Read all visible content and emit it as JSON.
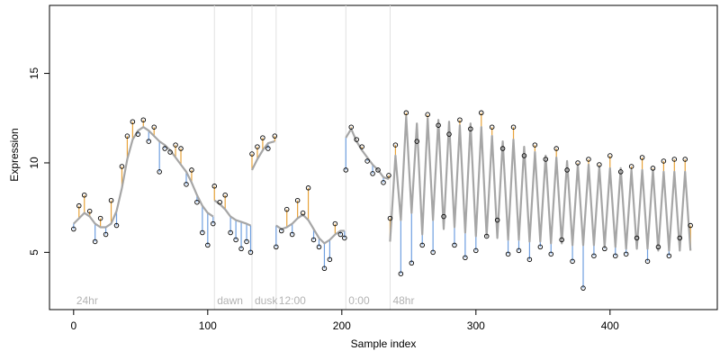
{
  "chart_data": {
    "type": "line",
    "xlabel": "Sample index",
    "ylabel": "Expression",
    "xlim": [
      -18,
      480
    ],
    "ylim": [
      1.8,
      18.8
    ],
    "x_ticks": [
      0,
      100,
      200,
      300,
      400
    ],
    "y_ticks": [
      5,
      10,
      15
    ],
    "grid": false,
    "colors": {
      "fit": "#a6a6a6",
      "residual_above": "#e8a33a",
      "residual_below": "#6f9fe0",
      "period_line": "#e0e0e0",
      "point_stroke": "#000000"
    },
    "periods": [
      {
        "label": "24hr",
        "x": 0
      },
      {
        "label": "dawn",
        "x": 105
      },
      {
        "label": "dusk",
        "x": 133
      },
      {
        "label": "12:00",
        "x": 151
      },
      {
        "label": "0:00",
        "x": 203
      },
      {
        "label": "48hr",
        "x": 236
      }
    ],
    "segments": [
      {
        "x": [
          0,
          4,
          8,
          12,
          16,
          20,
          24,
          28,
          32,
          36,
          40,
          44,
          48,
          52,
          56,
          60,
          64,
          68,
          72,
          76,
          80,
          84,
          88,
          92,
          96,
          100,
          104
        ],
        "fit": [
          6.6,
          6.9,
          7.2,
          7.0,
          6.6,
          6.4,
          6.4,
          6.6,
          7.3,
          8.6,
          10.2,
          11.3,
          11.8,
          12.0,
          11.8,
          11.5,
          11.2,
          11.0,
          10.7,
          10.3,
          9.9,
          9.5,
          8.9,
          8.2,
          7.6,
          7.2,
          7.0
        ],
        "obs": [
          6.3,
          7.6,
          8.2,
          7.3,
          5.6,
          6.9,
          6.0,
          7.9,
          6.5,
          9.8,
          11.5,
          12.3,
          11.6,
          12.4,
          11.2,
          12.0,
          9.5,
          10.8,
          10.6,
          11.0,
          10.8,
          8.8,
          9.6,
          7.8,
          6.1,
          5.4,
          6.6
        ]
      },
      {
        "x": [
          105,
          109,
          113,
          117,
          121,
          125,
          129,
          132
        ],
        "fit": [
          7.9,
          7.7,
          7.4,
          7.0,
          6.8,
          6.7,
          6.6,
          6.5
        ],
        "obs": [
          8.7,
          7.8,
          8.2,
          6.1,
          5.7,
          5.2,
          5.6,
          5.0
        ]
      },
      {
        "x": [
          133,
          137,
          141,
          145,
          150
        ],
        "fit": [
          9.6,
          10.2,
          10.7,
          11.1,
          11.2
        ],
        "obs": [
          10.5,
          10.9,
          11.4,
          10.8,
          11.5
        ]
      },
      {
        "x": [
          151,
          155,
          159,
          163,
          167,
          171,
          175,
          179,
          183,
          187,
          191,
          195,
          199,
          202
        ],
        "fit": [
          6.5,
          6.3,
          6.4,
          6.6,
          6.9,
          7.1,
          6.8,
          6.3,
          5.8,
          5.5,
          5.7,
          6.0,
          6.2,
          6.2
        ],
        "obs": [
          5.3,
          6.2,
          7.4,
          6.0,
          7.9,
          7.2,
          8.6,
          5.7,
          5.3,
          4.1,
          4.6,
          6.6,
          6.0,
          5.8
        ]
      },
      {
        "x": [
          203,
          207,
          211,
          215,
          219,
          223,
          227,
          231,
          235
        ],
        "fit": [
          11.4,
          11.9,
          11.2,
          10.7,
          10.3,
          9.9,
          9.6,
          9.2,
          9.1
        ],
        "obs": [
          9.6,
          12.0,
          11.3,
          10.9,
          10.1,
          9.4,
          9.6,
          8.9,
          9.3
        ]
      },
      {
        "x": [
          236,
          240,
          244,
          248,
          252,
          256,
          260,
          264,
          268,
          272,
          276,
          280,
          284,
          288,
          292,
          296,
          300,
          304,
          308,
          312,
          316,
          320,
          324,
          328,
          332,
          336,
          340,
          344,
          348,
          352,
          356,
          360,
          364,
          368,
          372,
          376,
          380,
          384,
          388,
          392,
          396,
          400,
          404,
          408,
          412,
          416,
          420,
          424,
          428,
          432,
          436,
          440,
          444,
          448,
          452,
          456,
          460
        ],
        "fit": [
          5.6,
          10.4,
          6.8,
          12.6,
          7.2,
          12.2,
          6.0,
          12.5,
          6.8,
          12.4,
          6.3,
          12.3,
          6.4,
          12.1,
          6.1,
          12.2,
          5.9,
          12.0,
          5.9,
          11.5,
          5.8,
          11.2,
          5.7,
          11.3,
          5.7,
          10.9,
          5.6,
          10.6,
          5.6,
          10.4,
          5.5,
          10.3,
          5.5,
          10.1,
          5.4,
          9.9,
          5.4,
          9.9,
          5.4,
          9.8,
          5.3,
          9.7,
          5.3,
          9.7,
          5.2,
          9.6,
          5.2,
          9.6,
          5.2,
          9.6,
          5.1,
          9.5,
          5.1,
          9.5,
          5.1,
          9.5,
          5.1
        ],
        "obs": [
          6.9,
          11.0,
          3.8,
          12.8,
          4.4,
          11.2,
          5.4,
          12.7,
          5.0,
          12.1,
          7.0,
          11.6,
          5.4,
          12.4,
          4.7,
          11.9,
          5.1,
          12.8,
          5.9,
          12.0,
          6.8,
          10.8,
          4.9,
          12.0,
          5.1,
          10.4,
          4.6,
          11.0,
          5.3,
          10.2,
          4.9,
          10.8,
          5.7,
          9.6,
          4.5,
          10.0,
          3.0,
          10.2,
          4.8,
          9.9,
          5.2,
          10.4,
          4.8,
          9.5,
          4.9,
          9.8,
          5.8,
          10.3,
          4.5,
          9.7,
          5.3,
          10.1,
          4.8,
          10.2,
          5.8,
          10.2,
          6.5
        ]
      }
    ]
  }
}
